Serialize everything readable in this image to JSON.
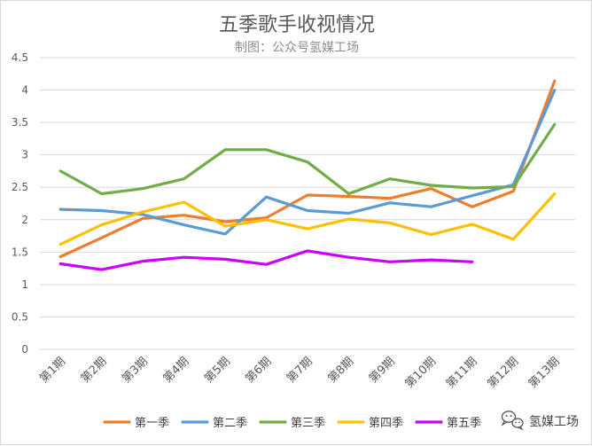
{
  "chart_data": {
    "type": "line",
    "title": "五季歌手收视情况",
    "subtitle": "制图：公众号氢媒工场",
    "xlabel": "",
    "ylabel": "",
    "ylim": [
      0,
      4.5
    ],
    "yticks": [
      0,
      0.5,
      1,
      1.5,
      2,
      2.5,
      3,
      3.5,
      4,
      4.5
    ],
    "ytick_labels": [
      "0",
      "0.5",
      "1",
      "1.5",
      "2",
      "2.5",
      "3",
      "3.5",
      "4",
      "4.5"
    ],
    "grid": true,
    "legend_position": "bottom",
    "categories": [
      "第1期",
      "第2期",
      "第3期",
      "第4期",
      "第5期",
      "第6期",
      "第7期",
      "第8期",
      "第9期",
      "第10期",
      "第11期",
      "第12期",
      "第13期"
    ],
    "series": [
      {
        "name": "第一季",
        "color": "#ED7D31",
        "values": [
          1.43,
          1.72,
          2.02,
          2.07,
          1.97,
          2.03,
          2.38,
          2.36,
          2.33,
          2.48,
          2.2,
          2.44,
          4.14
        ]
      },
      {
        "name": "第二季",
        "color": "#5B9BD5",
        "values": [
          2.16,
          2.14,
          2.08,
          1.92,
          1.78,
          2.35,
          2.14,
          2.1,
          2.26,
          2.2,
          2.37,
          2.54,
          4.0
        ]
      },
      {
        "name": "第三季",
        "color": "#70AD47",
        "values": [
          2.75,
          2.4,
          2.48,
          2.63,
          3.08,
          3.08,
          2.89,
          2.4,
          2.63,
          2.53,
          2.49,
          2.51,
          3.47
        ]
      },
      {
        "name": "第四季",
        "color": "#FFC000",
        "values": [
          1.62,
          1.92,
          2.12,
          2.27,
          1.9,
          2.0,
          1.86,
          2.01,
          1.95,
          1.77,
          1.93,
          1.7,
          2.4
        ]
      },
      {
        "name": "第五季",
        "color": "#CC00FF",
        "values": [
          1.32,
          1.23,
          1.36,
          1.42,
          1.39,
          1.31,
          1.52,
          1.42,
          1.35,
          1.38,
          1.35,
          null,
          null
        ]
      }
    ]
  },
  "watermark": {
    "icon": "wechat-icon",
    "text": "氢媒工场"
  }
}
